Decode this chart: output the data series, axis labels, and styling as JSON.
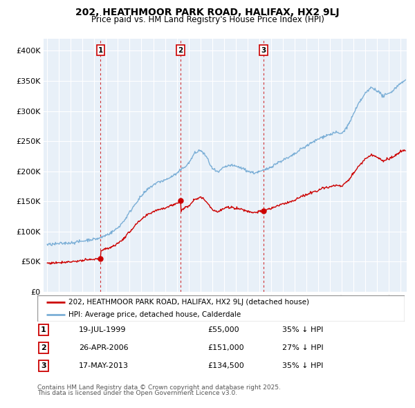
{
  "title": "202, HEATHMOOR PARK ROAD, HALIFAX, HX2 9LJ",
  "subtitle": "Price paid vs. HM Land Registry's House Price Index (HPI)",
  "legend_line1": "202, HEATHMOOR PARK ROAD, HALIFAX, HX2 9LJ (detached house)",
  "legend_line2": "HPI: Average price, detached house, Calderdale",
  "footer1": "Contains HM Land Registry data © Crown copyright and database right 2025.",
  "footer2": "This data is licensed under the Open Government Licence v3.0.",
  "table_rows": [
    {
      "num": "1",
      "date": "19-JUL-1999",
      "price": "£55,000",
      "hpi": "35% ↓ HPI"
    },
    {
      "num": "2",
      "date": "26-APR-2006",
      "price": "£151,000",
      "hpi": "27% ↓ HPI"
    },
    {
      "num": "3",
      "date": "17-MAY-2013",
      "price": "£134,500",
      "hpi": "35% ↓ HPI"
    }
  ],
  "sale_dates": [
    1999.54,
    2006.32,
    2013.38
  ],
  "sale_prices": [
    55000,
    151000,
    134500
  ],
  "sale_labels": [
    "1",
    "2",
    "3"
  ],
  "red_color": "#cc0000",
  "blue_color": "#7aaed6",
  "background_color": "#ffffff",
  "grid_color": "#cccccc",
  "chart_bg": "#e8f0f8",
  "ylim": [
    0,
    420000
  ],
  "yticks": [
    0,
    50000,
    100000,
    150000,
    200000,
    250000,
    300000,
    350000,
    400000
  ],
  "ytick_labels": [
    "£0",
    "£50K",
    "£100K",
    "£150K",
    "£200K",
    "£250K",
    "£300K",
    "£350K",
    "£400K"
  ],
  "xlim_start": 1994.7,
  "xlim_end": 2025.5
}
